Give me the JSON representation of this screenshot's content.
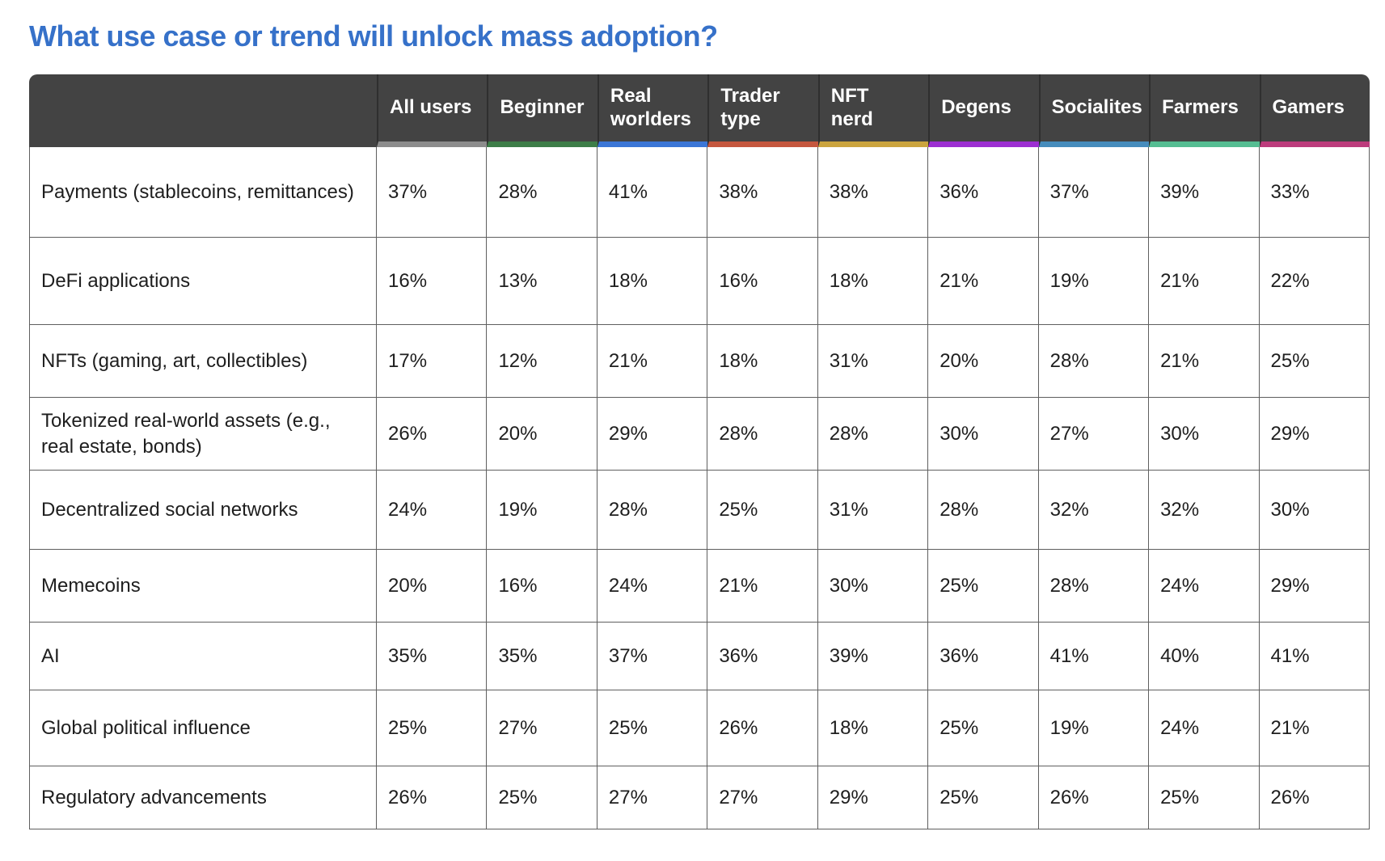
{
  "title": "What use case or trend will unlock mass adoption?",
  "title_color": "#3671c9",
  "header_bg": "#434343",
  "table": {
    "columns": [
      {
        "label": "All users",
        "accent": "#8c8c8c"
      },
      {
        "label": "Beginner",
        "accent": "#3d7d48"
      },
      {
        "label": "Real\nworlders",
        "accent": "#3b76d6"
      },
      {
        "label": "Trader\ntype",
        "accent": "#c5573e"
      },
      {
        "label": "NFT\nnerd",
        "accent": "#cba43e"
      },
      {
        "label": "Degens",
        "accent": "#9c2fd1"
      },
      {
        "label": "Socialites",
        "accent": "#468cbc"
      },
      {
        "label": "Farmers",
        "accent": "#55bd92"
      },
      {
        "label": "Gamers",
        "accent": "#bc3c7c"
      }
    ],
    "rows": [
      {
        "label": "Payments (stablecoins, remittances)",
        "values": [
          "37%",
          "28%",
          "41%",
          "38%",
          "38%",
          "36%",
          "37%",
          "39%",
          "33%"
        ]
      },
      {
        "label": "DeFi applications",
        "values": [
          "16%",
          "13%",
          "18%",
          "16%",
          "18%",
          "21%",
          "19%",
          "21%",
          "22%"
        ]
      },
      {
        "label": "NFTs (gaming, art, collectibles)",
        "values": [
          "17%",
          "12%",
          "21%",
          "18%",
          "31%",
          "20%",
          "28%",
          "21%",
          "25%"
        ]
      },
      {
        "label": "Tokenized real-world assets (e.g., real estate, bonds)",
        "values": [
          "26%",
          "20%",
          "29%",
          "28%",
          "28%",
          "30%",
          "27%",
          "30%",
          "29%"
        ]
      },
      {
        "label": "Decentralized social networks",
        "values": [
          "24%",
          "19%",
          "28%",
          "25%",
          "31%",
          "28%",
          "32%",
          "32%",
          "30%"
        ]
      },
      {
        "label": "Memecoins",
        "values": [
          "20%",
          "16%",
          "24%",
          "21%",
          "30%",
          "25%",
          "28%",
          "24%",
          "29%"
        ]
      },
      {
        "label": "AI",
        "values": [
          "35%",
          "35%",
          "37%",
          "36%",
          "39%",
          "36%",
          "41%",
          "40%",
          "41%"
        ]
      },
      {
        "label": "Global political influence",
        "values": [
          "25%",
          "27%",
          "25%",
          "26%",
          "18%",
          "25%",
          "19%",
          "24%",
          "21%"
        ]
      },
      {
        "label": "Regulatory advancements",
        "values": [
          "26%",
          "25%",
          "27%",
          "27%",
          "29%",
          "25%",
          "26%",
          "25%",
          "26%"
        ]
      }
    ]
  },
  "chart_data": {
    "type": "table",
    "title": "What use case or trend will unlock mass adoption?",
    "unit": "%",
    "categories": [
      "Payments (stablecoins, remittances)",
      "DeFi applications",
      "NFTs (gaming, art, collectibles)",
      "Tokenized real-world assets (e.g., real estate, bonds)",
      "Decentralized social networks",
      "Memecoins",
      "AI",
      "Global political influence",
      "Regulatory advancements"
    ],
    "series": [
      {
        "name": "All users",
        "accent": "#8c8c8c",
        "values": [
          37,
          16,
          17,
          26,
          24,
          20,
          35,
          25,
          26
        ]
      },
      {
        "name": "Beginner",
        "accent": "#3d7d48",
        "values": [
          28,
          13,
          12,
          20,
          19,
          16,
          35,
          27,
          25
        ]
      },
      {
        "name": "Real worlders",
        "accent": "#3b76d6",
        "values": [
          41,
          18,
          21,
          29,
          28,
          24,
          37,
          25,
          27
        ]
      },
      {
        "name": "Trader type",
        "accent": "#c5573e",
        "values": [
          38,
          16,
          18,
          28,
          25,
          21,
          36,
          26,
          27
        ]
      },
      {
        "name": "NFT nerd",
        "accent": "#cba43e",
        "values": [
          38,
          18,
          31,
          28,
          31,
          30,
          39,
          18,
          29
        ]
      },
      {
        "name": "Degens",
        "accent": "#9c2fd1",
        "values": [
          36,
          21,
          20,
          30,
          28,
          25,
          36,
          25,
          25
        ]
      },
      {
        "name": "Socialites",
        "accent": "#468cbc",
        "values": [
          37,
          19,
          28,
          27,
          32,
          28,
          41,
          19,
          26
        ]
      },
      {
        "name": "Farmers",
        "accent": "#55bd92",
        "values": [
          39,
          21,
          21,
          30,
          32,
          24,
          40,
          24,
          25
        ]
      },
      {
        "name": "Gamers",
        "accent": "#bc3c7c",
        "values": [
          33,
          22,
          25,
          29,
          30,
          29,
          41,
          21,
          26
        ]
      }
    ]
  }
}
